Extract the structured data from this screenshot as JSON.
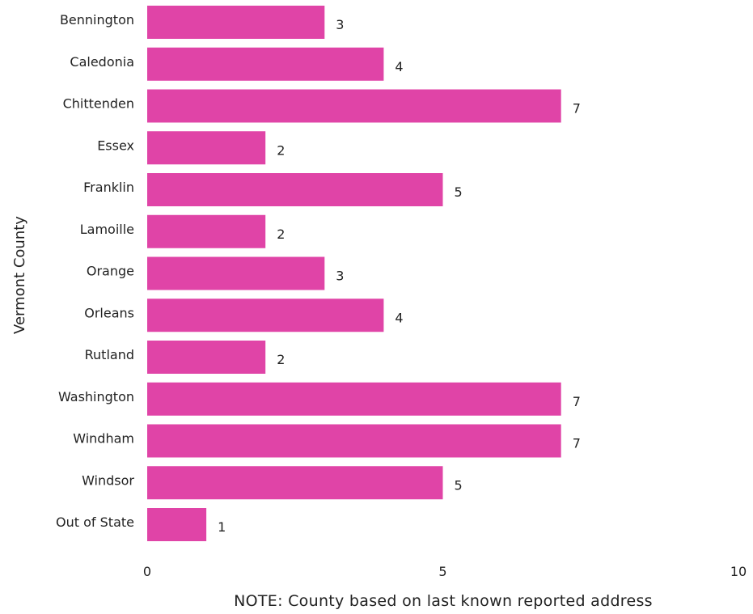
{
  "chart_data": {
    "type": "bar",
    "orientation": "horizontal",
    "categories": [
      "Bennington",
      "Caledonia",
      "Chittenden",
      "Essex",
      "Franklin",
      "Lamoille",
      "Orange",
      "Orleans",
      "Rutland",
      "Washington",
      "Windham",
      "Windsor",
      "Out of State"
    ],
    "values": [
      3,
      4,
      7,
      2,
      5,
      2,
      3,
      4,
      2,
      7,
      7,
      5,
      1
    ],
    "title": "",
    "ylabel": "Vermont County",
    "xlabel": "NOTE: County based on last known reported address",
    "xlim": [
      0,
      10
    ],
    "xticks": [
      0,
      5,
      10
    ],
    "data_labels": true,
    "grid": false,
    "bar_color": "#e044a7"
  }
}
